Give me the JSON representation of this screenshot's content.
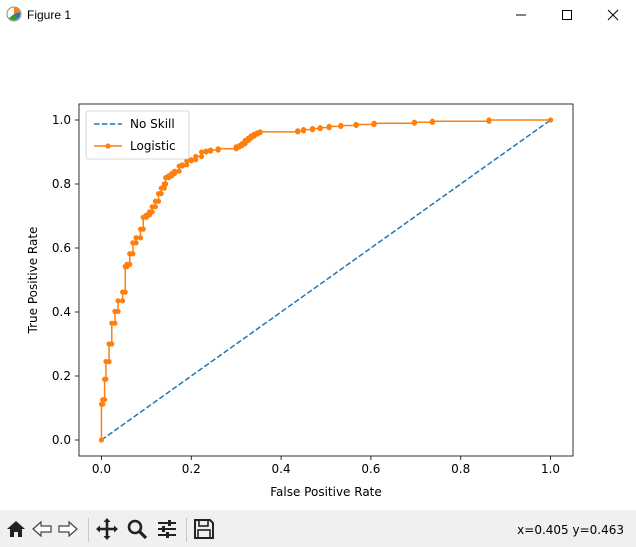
{
  "window": {
    "title": "Figure 1",
    "app_icon": "matplotlib-icon",
    "controls": [
      "minimize-icon",
      "maximize-icon",
      "close-icon"
    ]
  },
  "toolbar": {
    "buttons": [
      "home-icon",
      "back-icon",
      "forward-icon",
      "pan-icon",
      "zoom-icon",
      "configure-subplots-icon",
      "save-icon"
    ],
    "coords": "x=0.405 y=0.463"
  },
  "chart_data": {
    "type": "line",
    "title": "",
    "xlabel": "False Positive Rate",
    "ylabel": "True Positive Rate",
    "xlim": [
      -0.05,
      1.05
    ],
    "ylim": [
      -0.05,
      1.05
    ],
    "xticks": [
      0.0,
      0.2,
      0.4,
      0.6,
      0.8,
      1.0
    ],
    "yticks": [
      0.0,
      0.2,
      0.4,
      0.6,
      0.8,
      1.0
    ],
    "tick_labels_x": [
      "0.0",
      "0.2",
      "0.4",
      "0.6",
      "0.8",
      "1.0"
    ],
    "tick_labels_y": [
      "0.0",
      "0.2",
      "0.4",
      "0.6",
      "0.8",
      "1.0"
    ],
    "grid": false,
    "legend_position": "top-left",
    "series": [
      {
        "name": "No Skill",
        "style": "dashed",
        "color": "#1f77b4",
        "x": [
          0,
          1
        ],
        "y": [
          0,
          1
        ]
      },
      {
        "name": "Logistic",
        "style": "solid-with-dot-markers",
        "color": "#ff7f0e",
        "x": [
          0.0,
          0.0,
          0.003,
          0.003,
          0.007,
          0.007,
          0.01,
          0.01,
          0.017,
          0.017,
          0.023,
          0.023,
          0.03,
          0.03,
          0.037,
          0.037,
          0.047,
          0.047,
          0.053,
          0.053,
          0.057,
          0.057,
          0.063,
          0.063,
          0.07,
          0.07,
          0.077,
          0.077,
          0.087,
          0.087,
          0.093,
          0.093,
          0.1,
          0.1,
          0.107,
          0.107,
          0.113,
          0.113,
          0.12,
          0.12,
          0.127,
          0.127,
          0.133,
          0.133,
          0.14,
          0.14,
          0.143,
          0.143,
          0.15,
          0.15,
          0.157,
          0.157,
          0.163,
          0.163,
          0.173,
          0.173,
          0.18,
          0.18,
          0.19,
          0.19,
          0.2,
          0.2,
          0.21,
          0.21,
          0.223,
          0.223,
          0.233,
          0.233,
          0.243,
          0.243,
          0.26,
          0.26,
          0.3,
          0.3,
          0.307,
          0.307,
          0.313,
          0.313,
          0.32,
          0.32,
          0.327,
          0.327,
          0.333,
          0.333,
          0.34,
          0.34,
          0.347,
          0.347,
          0.353,
          0.353,
          0.437,
          0.437,
          0.45,
          0.45,
          0.47,
          0.47,
          0.487,
          0.487,
          0.507,
          0.507,
          0.533,
          0.533,
          0.567,
          0.567,
          0.607,
          0.607,
          0.697,
          0.697,
          0.737,
          0.737,
          0.863,
          0.863,
          1.0
        ],
        "y": [
          0.0,
          0.112,
          0.112,
          0.126,
          0.126,
          0.19,
          0.19,
          0.245,
          0.245,
          0.3,
          0.3,
          0.365,
          0.365,
          0.402,
          0.402,
          0.435,
          0.435,
          0.462,
          0.462,
          0.542,
          0.542,
          0.549,
          0.549,
          0.582,
          0.582,
          0.616,
          0.616,
          0.632,
          0.632,
          0.659,
          0.659,
          0.696,
          0.696,
          0.703,
          0.703,
          0.713,
          0.713,
          0.729,
          0.729,
          0.746,
          0.746,
          0.77,
          0.77,
          0.787,
          0.787,
          0.8,
          0.8,
          0.82,
          0.82,
          0.826,
          0.826,
          0.833,
          0.833,
          0.84,
          0.84,
          0.856,
          0.856,
          0.86,
          0.86,
          0.872,
          0.872,
          0.876,
          0.876,
          0.886,
          0.886,
          0.9,
          0.9,
          0.903,
          0.903,
          0.906,
          0.906,
          0.91,
          0.91,
          0.916,
          0.916,
          0.92,
          0.92,
          0.926,
          0.926,
          0.936,
          0.936,
          0.943,
          0.943,
          0.95,
          0.95,
          0.956,
          0.956,
          0.96,
          0.96,
          0.963,
          0.963,
          0.966,
          0.966,
          0.97,
          0.97,
          0.973,
          0.973,
          0.976,
          0.976,
          0.98,
          0.98,
          0.983,
          0.983,
          0.986,
          0.986,
          0.99,
          0.99,
          0.993,
          0.993,
          0.996,
          0.996,
          1.0,
          1.0
        ]
      }
    ]
  }
}
